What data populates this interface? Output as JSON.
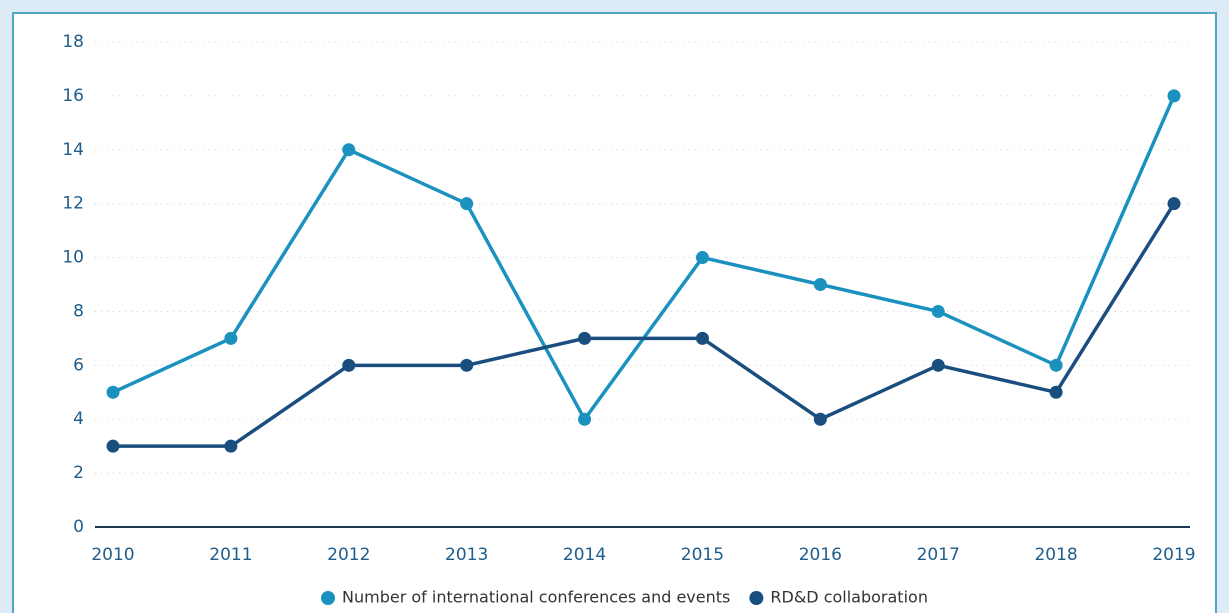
{
  "chart_data": {
    "type": "line",
    "categories": [
      "2010",
      "2011",
      "2012",
      "2013",
      "2014",
      "2015",
      "2016",
      "2017",
      "2018",
      "2019"
    ],
    "series": [
      {
        "name": "Number of international conferences and events",
        "color": "#1b91bf",
        "values": [
          5,
          7,
          14,
          12,
          4,
          10,
          9,
          8,
          6,
          16
        ]
      },
      {
        "name": "RD&D collaboration",
        "color": "#1a4e7e",
        "values": [
          3,
          3,
          6,
          6,
          7,
          7,
          4,
          6,
          5,
          12
        ]
      }
    ],
    "ylim": [
      0,
      18
    ],
    "yticks": [
      0,
      2,
      4,
      6,
      8,
      10,
      12,
      14,
      16,
      18
    ],
    "grid": true,
    "legend": "bottom"
  }
}
